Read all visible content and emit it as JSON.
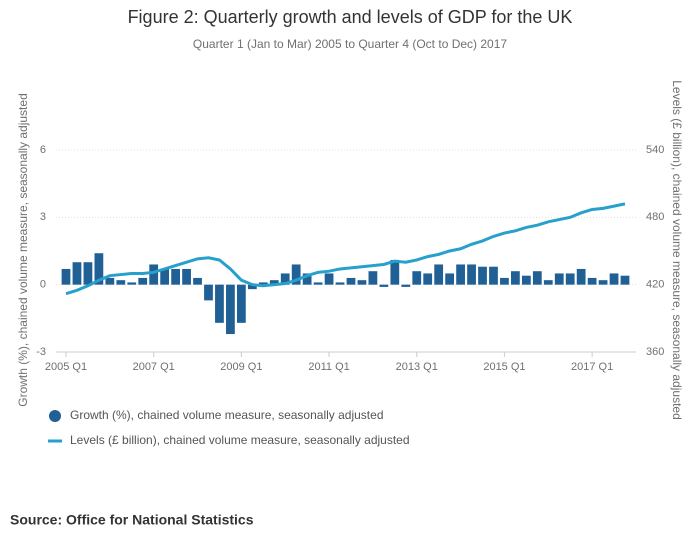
{
  "chart_data": {
    "type": "bar-line",
    "title": "Figure 2: Quarterly growth and levels of GDP for the UK",
    "subtitle": "Quarter 1 (Jan to Mar) 2005 to Quarter 4 (Oct to Dec) 2017",
    "ylabel": "Growth (%), chained volume measure, seasonally adjusted",
    "y2label": "Levels (£ billion), chained volume measure, seasonally adjusted",
    "source": "Source: Office for National Statistics",
    "categories": [
      "2005 Q1",
      null,
      null,
      null,
      null,
      null,
      null,
      null,
      "2007 Q1",
      null,
      null,
      null,
      null,
      null,
      null,
      null,
      "2009 Q1",
      null,
      null,
      null,
      null,
      null,
      null,
      null,
      "2011 Q1",
      null,
      null,
      null,
      null,
      null,
      null,
      null,
      "2013 Q1",
      null,
      null,
      null,
      null,
      null,
      null,
      null,
      "2015 Q1",
      null,
      null,
      null,
      null,
      null,
      null,
      null,
      "2017 Q1",
      null,
      null,
      null
    ],
    "series": [
      {
        "name": "Growth (%), chained volume measure, seasonally adjusted",
        "type": "bar",
        "color": "#206095",
        "values": [
          0.7,
          1.0,
          1.0,
          1.4,
          0.3,
          0.2,
          0.1,
          0.3,
          0.9,
          0.7,
          0.7,
          0.7,
          0.3,
          -0.7,
          -1.7,
          -2.2,
          -1.7,
          -0.2,
          0.1,
          0.2,
          0.5,
          0.9,
          0.5,
          0.1,
          0.5,
          0.1,
          0.3,
          0.2,
          0.6,
          -0.1,
          1.1,
          -0.1,
          0.6,
          0.5,
          0.9,
          0.5,
          0.9,
          0.9,
          0.8,
          0.8,
          0.3,
          0.6,
          0.4,
          0.6,
          0.2,
          0.5,
          0.5,
          0.7,
          0.3,
          0.2,
          0.5,
          0.4
        ]
      },
      {
        "name": "Levels (£ billion), chained volume measure, seasonally adjusted",
        "type": "line",
        "axis": "y2",
        "color": "#27a0cc",
        "values": [
          412,
          415,
          419,
          424,
          428,
          429,
          430,
          430,
          431,
          434,
          437,
          440,
          443,
          444,
          442,
          434,
          424,
          420,
          419,
          420,
          421,
          424,
          428,
          431,
          432,
          434,
          435,
          436,
          437,
          438,
          441,
          440,
          442,
          445,
          447,
          450,
          452,
          456,
          459,
          463,
          466,
          468,
          471,
          473,
          476,
          478,
          480,
          484,
          487,
          488,
          490,
          492
        ]
      }
    ],
    "ylim": [
      -3,
      6
    ],
    "yticks": [
      -3,
      0,
      3,
      6
    ],
    "y2lim": [
      360,
      540
    ],
    "y2ticks": [
      360,
      420,
      480,
      540
    ],
    "grid": true
  }
}
